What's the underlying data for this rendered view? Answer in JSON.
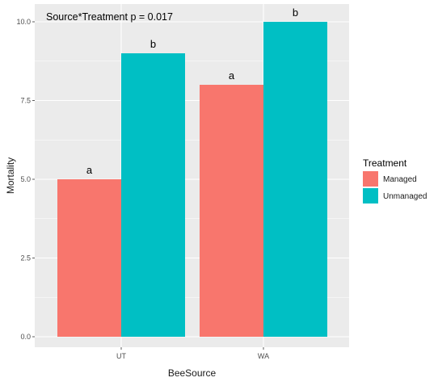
{
  "chart_data": {
    "type": "bar",
    "categories": [
      "UT",
      "WA"
    ],
    "series": [
      {
        "name": "Managed",
        "color": "#F8766D",
        "values": [
          5,
          8
        ],
        "labels": [
          "a",
          "a"
        ]
      },
      {
        "name": "Unmanaged",
        "color": "#00BFC4",
        "values": [
          9,
          10
        ],
        "labels": [
          "b",
          "b"
        ]
      }
    ],
    "xlabel": "BeeSource",
    "ylabel": "Mortality",
    "ylim": [
      0,
      10.25
    ],
    "yticks": [
      0,
      2.5,
      5,
      7.5,
      10
    ],
    "ytick_labels": [
      "0.0",
      "2.5",
      "5.0",
      "7.5",
      "10.0"
    ],
    "annotation": "Source*Treatment p = 0.017",
    "legend": {
      "title": "Treatment",
      "placement": "right"
    },
    "grid": true,
    "panel_color": "#EBEBEB",
    "grid_color": "#FFFFFF"
  }
}
